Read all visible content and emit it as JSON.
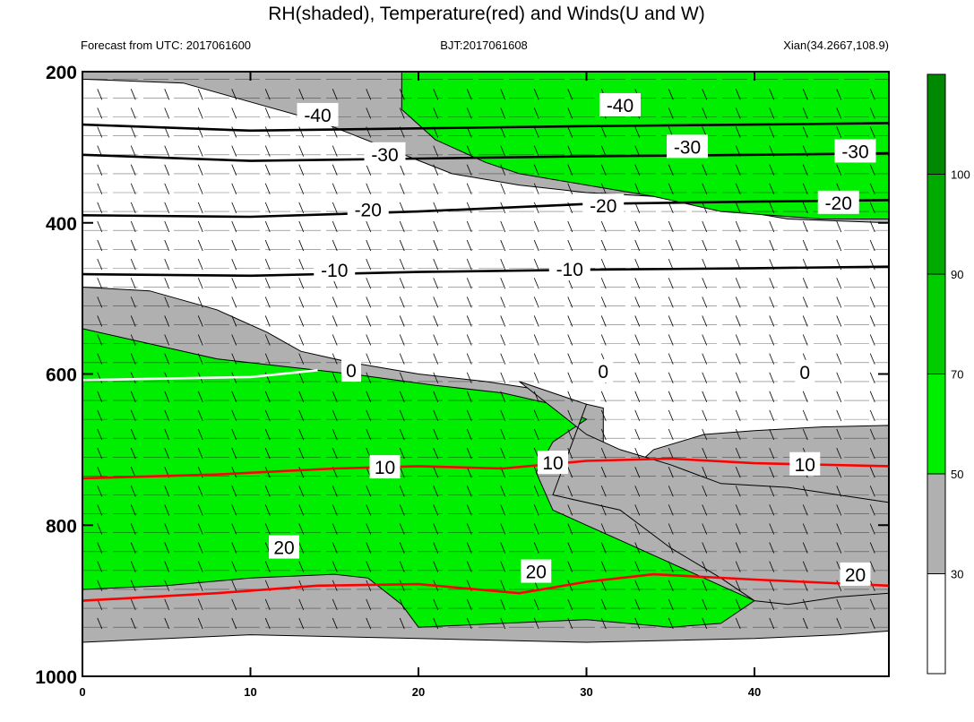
{
  "chart_data": {
    "type": "heatmap",
    "title": "RH(shaded), Temperature(red) and Winds(U and W)",
    "subtitle_left": "Forecast from UTC: 2017061600",
    "subtitle_center": "BJT:2017061608",
    "subtitle_right": "Xian(34.2667,108.9)",
    "xlabel": "",
    "ylabel": "",
    "xlim": [
      0,
      48
    ],
    "ylim": [
      1000,
      200
    ],
    "x_ticks": [
      0,
      10,
      20,
      30,
      40
    ],
    "y_ticks": [
      200,
      400,
      600,
      800,
      1000
    ],
    "colorbar": {
      "levels": [
        30,
        50,
        70,
        90,
        100
      ],
      "colors": [
        "#ffffff",
        "#b0b0b0",
        "#00ee00",
        "#00cc00",
        "#00aa00",
        "#008800"
      ]
    },
    "rh_regions": [
      {
        "level": "gray",
        "color": "#b0b0b0",
        "points": [
          [
            0,
            485
          ],
          [
            4,
            490
          ],
          [
            8,
            515
          ],
          [
            11,
            545
          ],
          [
            13,
            570
          ],
          [
            16,
            585
          ],
          [
            20,
            600
          ],
          [
            24,
            610
          ],
          [
            27,
            620
          ],
          [
            29,
            635
          ],
          [
            31,
            645
          ],
          [
            31,
            700
          ],
          [
            30,
            720
          ],
          [
            29,
            760
          ],
          [
            32,
            740
          ],
          [
            34,
            700
          ],
          [
            37,
            680
          ],
          [
            40,
            675
          ],
          [
            44,
            670
          ],
          [
            48,
            668
          ],
          [
            48,
            940
          ],
          [
            45,
            945
          ],
          [
            40,
            950
          ],
          [
            30,
            955
          ],
          [
            20,
            950
          ],
          [
            10,
            945
          ],
          [
            0,
            955
          ]
        ]
      },
      {
        "level": "green",
        "color": "#00ee00",
        "points": [
          [
            0,
            540
          ],
          [
            4,
            560
          ],
          [
            8,
            580
          ],
          [
            12,
            590
          ],
          [
            16,
            600
          ],
          [
            21,
            615
          ],
          [
            25,
            625
          ],
          [
            28,
            640
          ],
          [
            30,
            660
          ],
          [
            28,
            690
          ],
          [
            27,
            730
          ],
          [
            28,
            780
          ],
          [
            30,
            800
          ],
          [
            32,
            820
          ],
          [
            35,
            850
          ],
          [
            38,
            880
          ],
          [
            40,
            900
          ],
          [
            38,
            930
          ],
          [
            35,
            935
          ],
          [
            30,
            925
          ],
          [
            25,
            930
          ],
          [
            20,
            935
          ],
          [
            19,
            905
          ],
          [
            17,
            870
          ],
          [
            15,
            865
          ],
          [
            10,
            870
          ],
          [
            5,
            880
          ],
          [
            0,
            885
          ]
        ]
      },
      {
        "level": "gray",
        "color": "#b0b0b0",
        "points": [
          [
            0,
            210
          ],
          [
            6,
            215
          ],
          [
            10,
            240
          ],
          [
            14,
            265
          ],
          [
            18,
            300
          ],
          [
            22,
            335
          ],
          [
            26,
            350
          ],
          [
            30,
            360
          ],
          [
            34,
            365
          ],
          [
            38,
            380
          ],
          [
            42,
            395
          ],
          [
            48,
            400
          ],
          [
            48,
            200
          ],
          [
            0,
            200
          ]
        ]
      },
      {
        "level": "green",
        "color": "#00ee00",
        "points": [
          [
            19,
            200
          ],
          [
            48,
            200
          ],
          [
            48,
            395
          ],
          [
            44,
            395
          ],
          [
            38,
            385
          ],
          [
            34,
            365
          ],
          [
            30,
            350
          ],
          [
            26,
            335
          ],
          [
            24,
            320
          ],
          [
            21,
            290
          ],
          [
            19,
            250
          ]
        ]
      },
      {
        "level": "gray",
        "color": "#b0b0b0",
        "points": [
          [
            26,
            610
          ],
          [
            30,
            640
          ],
          [
            29,
            700
          ],
          [
            28,
            760
          ],
          [
            32,
            780
          ],
          [
            35,
            830
          ],
          [
            38,
            870
          ],
          [
            40,
            900
          ],
          [
            42,
            905
          ],
          [
            45,
            895
          ],
          [
            48,
            890
          ],
          [
            48,
            770
          ],
          [
            45,
            760
          ],
          [
            42,
            750
          ],
          [
            38,
            745
          ],
          [
            35,
            720
          ],
          [
            32,
            700
          ],
          [
            30,
            680
          ]
        ]
      }
    ],
    "temperature_contours": [
      {
        "label": "-40",
        "level": -40,
        "color": "#000000",
        "points": [
          [
            0,
            270
          ],
          [
            10,
            278
          ],
          [
            20,
            275
          ],
          [
            30,
            272
          ],
          [
            40,
            270
          ],
          [
            48,
            268
          ]
        ]
      },
      {
        "label": "-30",
        "level": -30,
        "color": "#000000",
        "points": [
          [
            0,
            310
          ],
          [
            10,
            318
          ],
          [
            20,
            315
          ],
          [
            30,
            312
          ],
          [
            40,
            310
          ],
          [
            48,
            308
          ]
        ]
      },
      {
        "label": "-20",
        "level": -20,
        "color": "#000000",
        "points": [
          [
            0,
            390
          ],
          [
            10,
            392
          ],
          [
            20,
            385
          ],
          [
            30,
            375
          ],
          [
            40,
            372
          ],
          [
            48,
            370
          ]
        ]
      },
      {
        "label": "-10",
        "level": -10,
        "color": "#000000",
        "points": [
          [
            0,
            468
          ],
          [
            10,
            470
          ],
          [
            20,
            465
          ],
          [
            30,
            462
          ],
          [
            40,
            460
          ],
          [
            48,
            458
          ]
        ]
      },
      {
        "label": "0",
        "level": 0,
        "color": "#ffffff",
        "points": [
          [
            0,
            608
          ],
          [
            5,
            606
          ],
          [
            10,
            604
          ],
          [
            14,
            595
          ]
        ]
      },
      {
        "label": "10",
        "level": 10,
        "color": "#ff0000",
        "points": [
          [
            0,
            738
          ],
          [
            8,
            733
          ],
          [
            15,
            725
          ],
          [
            20,
            722
          ],
          [
            25,
            725
          ],
          [
            30,
            715
          ],
          [
            35,
            712
          ],
          [
            40,
            718
          ],
          [
            48,
            722
          ]
        ]
      },
      {
        "label": "20",
        "level": 20,
        "color": "#ff0000",
        "points": [
          [
            0,
            900
          ],
          [
            8,
            890
          ],
          [
            14,
            880
          ],
          [
            20,
            878
          ],
          [
            26,
            890
          ],
          [
            30,
            875
          ],
          [
            34,
            865
          ],
          [
            40,
            872
          ],
          [
            48,
            880
          ]
        ]
      }
    ],
    "isobar_labels": [
      {
        "label": "-40",
        "x": 14,
        "p": 258
      },
      {
        "label": "-40",
        "x": 32,
        "p": 245
      },
      {
        "label": "-30",
        "x": 18,
        "p": 310
      },
      {
        "label": "-30",
        "x": 36,
        "p": 300
      },
      {
        "label": "-30",
        "x": 46,
        "p": 306
      },
      {
        "label": "-20",
        "x": 17,
        "p": 383
      },
      {
        "label": "-20",
        "x": 31,
        "p": 378
      },
      {
        "label": "-20",
        "x": 45,
        "p": 374
      },
      {
        "label": "-10",
        "x": 15,
        "p": 463
      },
      {
        "label": "-10",
        "x": 29,
        "p": 462
      },
      {
        "label": "0",
        "x": 16,
        "p": 596
      },
      {
        "label": "0",
        "x": 31,
        "p": 597
      },
      {
        "label": "0",
        "x": 43,
        "p": 598
      },
      {
        "label": "10",
        "x": 18,
        "p": 724
      },
      {
        "label": "10",
        "x": 28,
        "p": 718
      },
      {
        "label": "10",
        "x": 43,
        "p": 720
      },
      {
        "label": "20",
        "x": 12,
        "p": 830
      },
      {
        "label": "20",
        "x": 27,
        "p": 862
      },
      {
        "label": "20",
        "x": 46,
        "p": 866
      }
    ]
  }
}
